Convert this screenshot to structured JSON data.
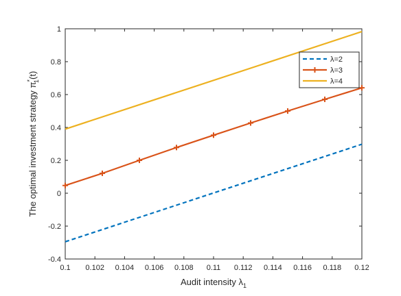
{
  "chart_data": {
    "type": "line",
    "xlabel": "Audit intensity λ",
    "xlabel_subscript": "1",
    "ylabel": "The optimal investment strategy π",
    "ylabel_superscript": "*",
    "ylabel_subscript": "1",
    "ylabel_suffix": "(t)",
    "xlim": [
      0.1,
      0.12
    ],
    "ylim": [
      -0.4,
      1
    ],
    "x_ticks": [
      0.1,
      0.102,
      0.104,
      0.106,
      0.108,
      0.11,
      0.112,
      0.114,
      0.116,
      0.118,
      0.12
    ],
    "x_tick_labels": [
      "0.1",
      "0.102",
      "0.104",
      "0.106",
      "0.108",
      "0.11",
      "0.112",
      "0.114",
      "0.116",
      "0.118",
      "0.12"
    ],
    "y_ticks": [
      -0.4,
      -0.2,
      0,
      0.2,
      0.4,
      0.6,
      0.8,
      1
    ],
    "y_tick_labels": [
      "-0.4",
      "-0.2",
      "0",
      "0.2",
      "0.4",
      "0.6",
      "0.8",
      "1"
    ],
    "grid": false,
    "legend_position": "top-right",
    "series": [
      {
        "name": "λ=2",
        "color": "#0072BD",
        "style": "dashed",
        "marker": "none",
        "x": [
          0.1,
          0.12
        ],
        "y": [
          -0.295,
          0.298
        ]
      },
      {
        "name": "λ=3",
        "color": "#D95319",
        "style": "solid",
        "marker": "plus",
        "x": [
          0.1,
          0.1025,
          0.105,
          0.1075,
          0.11,
          0.1125,
          0.115,
          0.1175,
          0.12
        ],
        "y": [
          0.047,
          0.121,
          0.2,
          0.278,
          0.353,
          0.427,
          0.5,
          0.571,
          0.641
        ]
      },
      {
        "name": "λ=4",
        "color": "#EDB120",
        "style": "solid",
        "marker": "none",
        "x": [
          0.1,
          0.12
        ],
        "y": [
          0.39,
          0.983
        ]
      }
    ]
  }
}
